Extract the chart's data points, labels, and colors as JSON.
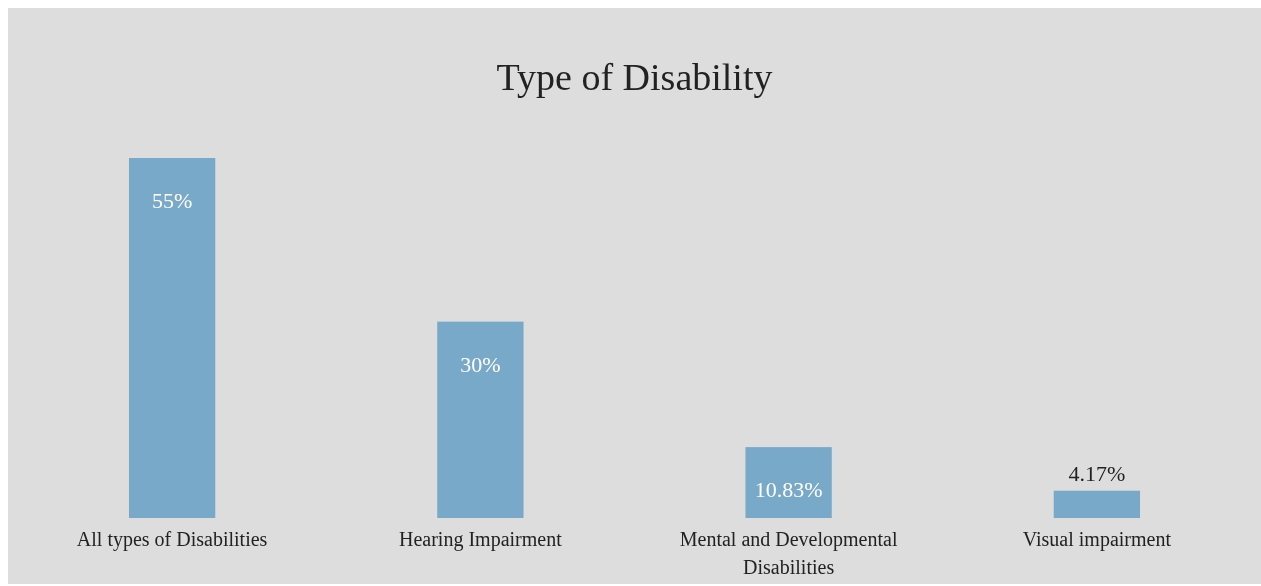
{
  "chart_data": {
    "type": "bar",
    "title": "Type of Disability",
    "categories": [
      "All types of Disabilities",
      "Hearing Impairment",
      "Mental and Developmental Disabilities",
      "Visual impairment"
    ],
    "values": [
      55,
      30,
      10.83,
      4.17
    ],
    "value_labels": [
      "55%",
      "30%",
      "10.83%",
      "4.17%"
    ],
    "color": "#79a9c8"
  }
}
